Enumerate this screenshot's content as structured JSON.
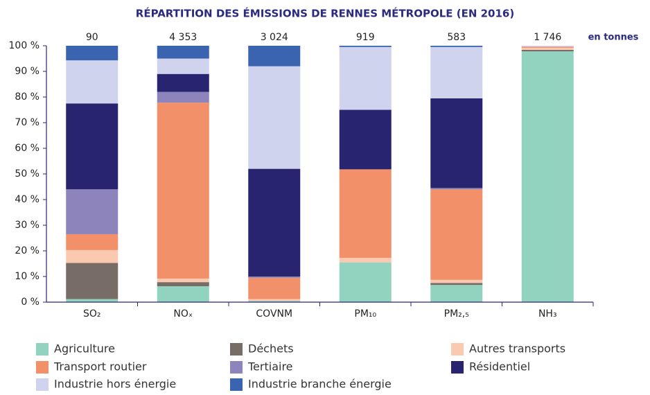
{
  "chart_data": {
    "type": "stacked-bar",
    "title": "RÉPARTITION DES ÉMISSIONS DE RENNES MÉTROPOLE (EN 2016)",
    "categories": [
      "SO₂",
      "NOₓ",
      "COVNM",
      "PM₁₀",
      "PM₂,₅",
      "NH₃"
    ],
    "series": [
      {
        "name": "Agriculture",
        "color": "#92d3c0",
        "values": [
          1.2,
          6.2,
          0.5,
          15.5,
          6.7,
          97.8
        ]
      },
      {
        "name": "Déchets",
        "color": "#786d66",
        "values": [
          14.1,
          1.6,
          0,
          0,
          0.8,
          0.6
        ]
      },
      {
        "name": "Autres transports",
        "color": "#fbc8b0",
        "values": [
          5,
          1.4,
          0.7,
          1.8,
          1.2,
          0.8
        ]
      },
      {
        "name": "Transport routier",
        "color": "#f29069",
        "values": [
          6.2,
          68.6,
          8.3,
          34.5,
          35.3,
          0.4
        ]
      },
      {
        "name": "Tertiaire",
        "color": "#8c84ba",
        "values": [
          17.5,
          4.2,
          0.5,
          0,
          0.5,
          0
        ]
      },
      {
        "name": "Résidentiel",
        "color": "#29246f",
        "values": [
          33.5,
          7,
          42,
          23.2,
          35,
          0
        ]
      },
      {
        "name": "Industrie hors énergie",
        "color": "#d0d3ee",
        "values": [
          16.8,
          6,
          40,
          24.5,
          20,
          0.4
        ]
      },
      {
        "name": "Industrie branche énergie",
        "color": "#3a63b0",
        "values": [
          5.7,
          5,
          8,
          0.5,
          0.5,
          0
        ]
      }
    ],
    "totals": {
      "values": [
        90,
        4353,
        3024,
        919,
        583,
        1746
      ],
      "value_labels": [
        "90",
        "4 353",
        "3 024",
        "919",
        "583",
        "1 746"
      ],
      "unit": "en tonnes"
    },
    "ylim": [
      0,
      100
    ],
    "yticks": [
      {
        "value": 0,
        "label": "0 %"
      },
      {
        "value": 10,
        "label": "10 %"
      },
      {
        "value": 20,
        "label": "20 %"
      },
      {
        "value": 30,
        "label": "30 %"
      },
      {
        "value": 40,
        "label": "40 %"
      },
      {
        "value": 50,
        "label": "50 %"
      },
      {
        "value": 60,
        "label": "60 %"
      },
      {
        "value": 70,
        "label": "70 %"
      },
      {
        "value": 80,
        "label": "80 %"
      },
      {
        "value": 90,
        "label": "90 %"
      },
      {
        "value": 100,
        "label": "100 %"
      }
    ],
    "legend": "bottom"
  }
}
